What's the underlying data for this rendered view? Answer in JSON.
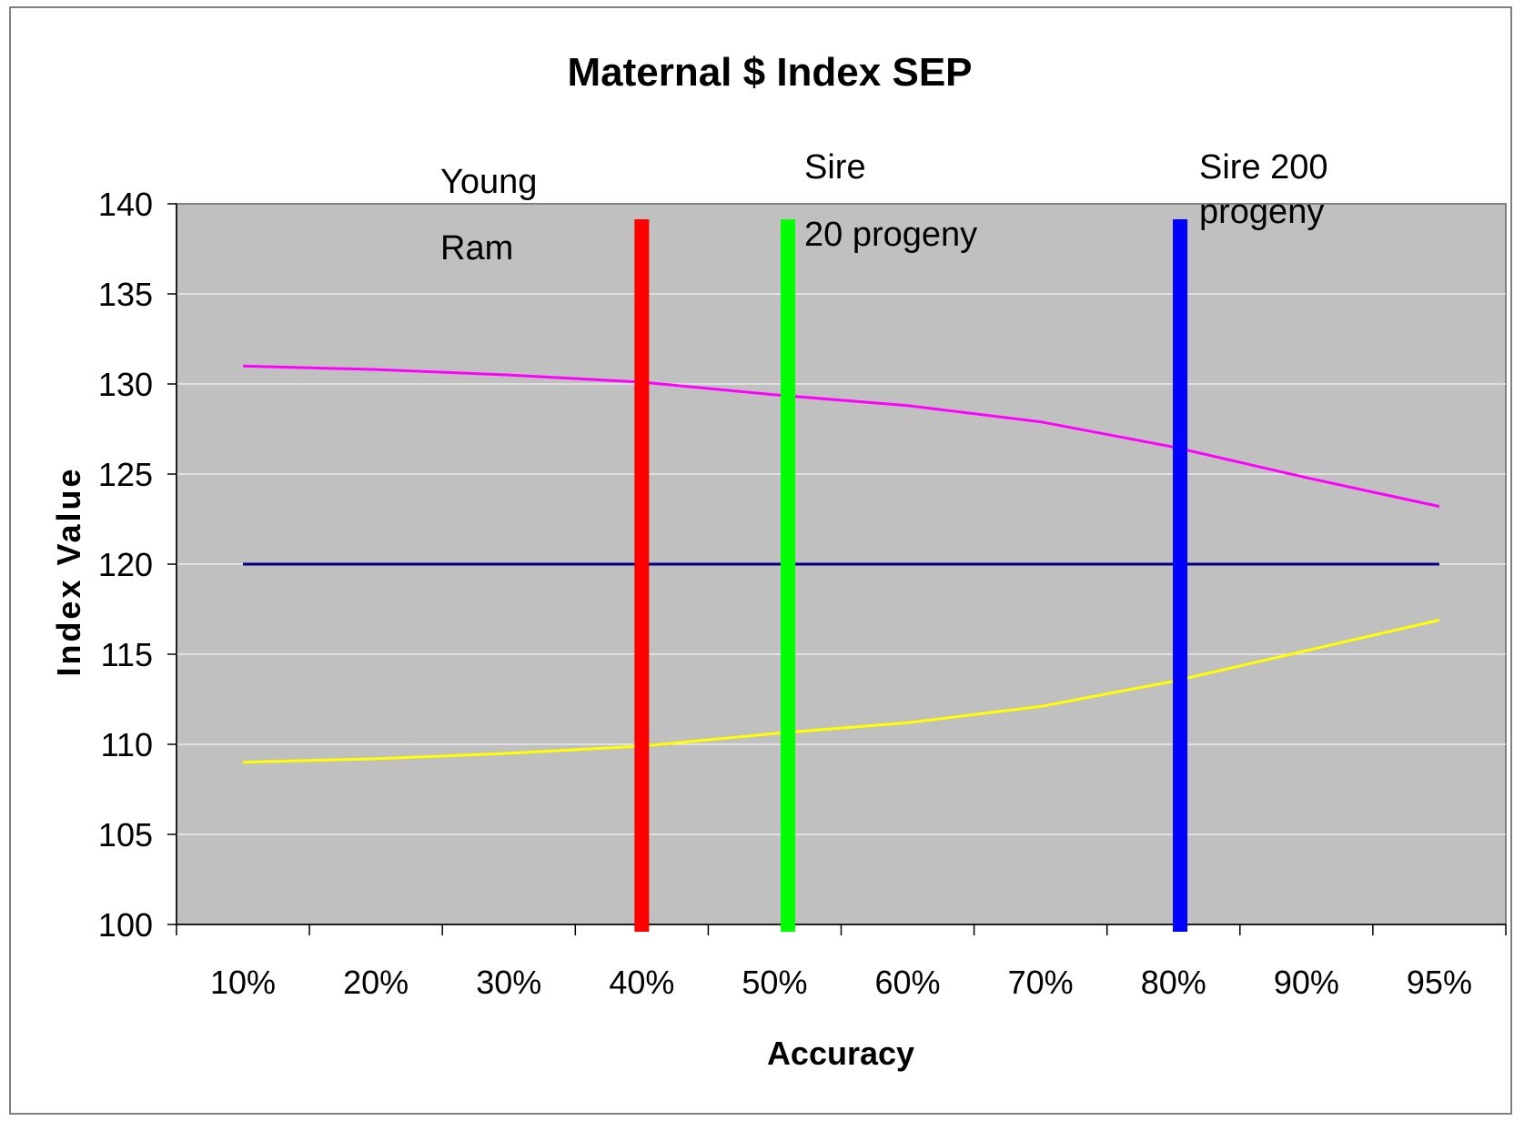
{
  "chart_data": {
    "type": "line",
    "title": "Maternal $ Index SEP",
    "xlabel": "Accuracy",
    "ylabel": "Index Value",
    "categories": [
      "10%",
      "20%",
      "30%",
      "40%",
      "50%",
      "60%",
      "70%",
      "80%",
      "90%",
      "95%"
    ],
    "ylim": [
      100,
      140
    ],
    "yticks": [
      100,
      105,
      110,
      115,
      120,
      125,
      130,
      135,
      140
    ],
    "grid": "horizontal lines on plot area",
    "series": [
      {
        "values": [
          131.0,
          130.8,
          130.5,
          130.1,
          129.4,
          128.8,
          127.9,
          126.5,
          124.8,
          123.2
        ],
        "color": "#ff00ff"
      },
      {
        "values": [
          120,
          120,
          120,
          120,
          120,
          120,
          120,
          120,
          120,
          120
        ],
        "color": "#000080"
      },
      {
        "values": [
          109.0,
          109.2,
          109.5,
          109.9,
          110.6,
          111.2,
          112.1,
          113.5,
          115.2,
          116.9
        ],
        "color": "#ffff00"
      }
    ],
    "markers": [
      {
        "label_lines": [
          "Young",
          "Ram"
        ],
        "x_position": 3.0,
        "color": "#ff0000"
      },
      {
        "label_lines": [
          "Sire",
          "20 progeny"
        ],
        "x_position": 4.1,
        "color": "#00ff00"
      },
      {
        "label_lines": [
          "Sire 200",
          "progeny"
        ],
        "x_position": 7.05,
        "color": "#0000ff"
      }
    ],
    "colors": {
      "plot_background": "#c0c0c0",
      "gridline": "#ffffff",
      "frame": "#808080"
    }
  }
}
